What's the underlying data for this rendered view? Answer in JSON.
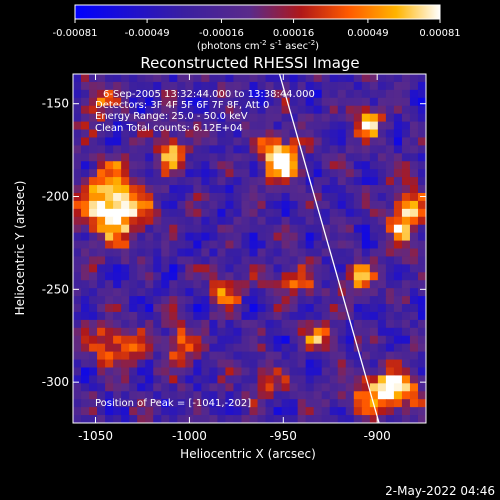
{
  "title": "Reconstructed RHESSI Image",
  "date_stamp": "2-May-2022 04:46",
  "colorbar": {
    "ticks": [
      "-0.00081",
      "-0.00049",
      "-0.00016",
      "0.00016",
      "0.00049",
      "0.00081"
    ],
    "tick_values": [
      -0.00081,
      -0.00049,
      -0.00016,
      0.00016,
      0.00049,
      0.00081
    ],
    "range": [
      -0.00081,
      0.00081
    ],
    "unit_base": "(photons cm",
    "unit_exp1": "-2",
    "unit_mid": " s",
    "unit_exp2": "-1",
    "unit_mid2": " asec",
    "unit_exp3": "-2",
    "unit_end": ")"
  },
  "annotations": {
    "time": "6-Sep-2005 13:32:44.000 to 13:38:44.000",
    "detectors": "Detectors: 3F 4F 5F 6F 7F 8F, Att 0",
    "energy": "Energy Range: 25.0 - 50.0 keV",
    "clean": "Clean    Total counts: 6.12E+04",
    "peak": "Position of Peak = [-1041,-202]"
  },
  "colors": {
    "background": "#000000",
    "foreground": "#ffffff",
    "colormap": [
      "#0000ff",
      "#3a1fa0",
      "#5a2a8a",
      "#b01818",
      "#ff5a00",
      "#ffb400",
      "#ffffff"
    ]
  },
  "chart_data": {
    "type": "heatmap",
    "title": "Reconstructed RHESSI Image",
    "xlabel": "Heliocentric X (arcsec)",
    "ylabel": "Heliocentric Y (arcsec)",
    "xlim": [
      -1062,
      -874
    ],
    "ylim": [
      -322,
      -134
    ],
    "x_ticks": [
      -1050,
      -1000,
      -950,
      -900
    ],
    "x_tick_labels": [
      "-1050",
      "-1000",
      "-950",
      "-900"
    ],
    "y_ticks": [
      -300,
      -250,
      -200,
      -150
    ],
    "y_tick_labels": [
      "-300",
      "-250",
      "-200",
      "-150"
    ],
    "limb_line": {
      "x": [
        -952,
        -899
      ],
      "y": [
        -134,
        -322
      ]
    },
    "peak_position": [
      -1041,
      -202
    ],
    "sources": [
      {
        "x": -1040,
        "y": -205,
        "rx": 12,
        "ry": 14,
        "amp": 1.0
      },
      {
        "x": -952,
        "y": -180,
        "rx": 8,
        "ry": 9,
        "amp": 0.95
      },
      {
        "x": -1010,
        "y": -175,
        "rx": 5,
        "ry": 8,
        "amp": 0.7
      },
      {
        "x": -885,
        "y": -210,
        "rx": 6,
        "ry": 12,
        "amp": 0.85
      },
      {
        "x": -905,
        "y": -160,
        "rx": 6,
        "ry": 7,
        "amp": 0.65
      },
      {
        "x": -895,
        "y": -305,
        "rx": 14,
        "ry": 8,
        "amp": 0.85
      },
      {
        "x": -1040,
        "y": -280,
        "rx": 10,
        "ry": 8,
        "amp": 0.6
      },
      {
        "x": -1005,
        "y": -280,
        "rx": 6,
        "ry": 8,
        "amp": 0.65
      },
      {
        "x": -980,
        "y": -250,
        "rx": 6,
        "ry": 7,
        "amp": 0.55
      },
      {
        "x": -945,
        "y": -245,
        "rx": 8,
        "ry": 6,
        "amp": 0.55
      },
      {
        "x": -960,
        "y": -300,
        "rx": 7,
        "ry": 6,
        "amp": 0.45
      },
      {
        "x": -1050,
        "y": -150,
        "rx": 6,
        "ry": 8,
        "amp": 0.55
      },
      {
        "x": -930,
        "y": -275,
        "rx": 6,
        "ry": 6,
        "amp": 0.55
      },
      {
        "x": -910,
        "y": -245,
        "rx": 6,
        "ry": 7,
        "amp": 0.55
      }
    ]
  }
}
